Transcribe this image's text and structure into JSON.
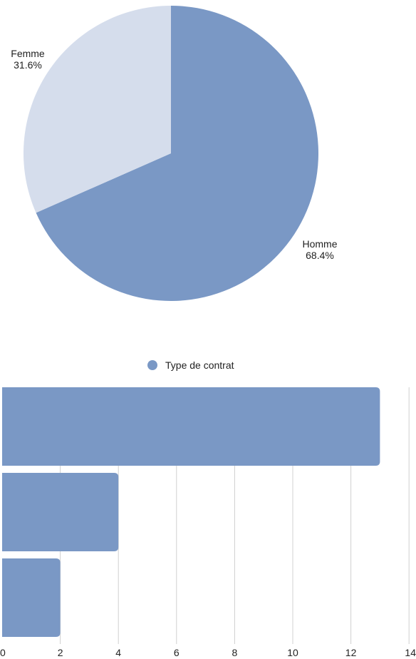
{
  "colors": {
    "primary": "#7a98c5",
    "secondary": "#d5ddec",
    "grid": "#d0d0d0",
    "text": "#222222"
  },
  "chart_data": [
    {
      "type": "pie",
      "slices": [
        {
          "label": "Femme",
          "percent_label": "31.6%",
          "value": 31.6,
          "color": "#d5ddec"
        },
        {
          "label": "Homme",
          "percent_label": "68.4%",
          "value": 68.4,
          "color": "#7a98c5"
        }
      ]
    },
    {
      "type": "bar",
      "orientation": "horizontal",
      "legend": {
        "label": "Type de contrat",
        "position": "top-center"
      },
      "series": [
        {
          "name": "Type de contrat",
          "values": [
            13,
            4,
            2
          ],
          "color": "#7a98c5"
        }
      ],
      "xlim": [
        0,
        14
      ],
      "xticks": [
        "0",
        "2",
        "4",
        "6",
        "8",
        "10",
        "12",
        "14"
      ],
      "grid": "vertical"
    }
  ]
}
